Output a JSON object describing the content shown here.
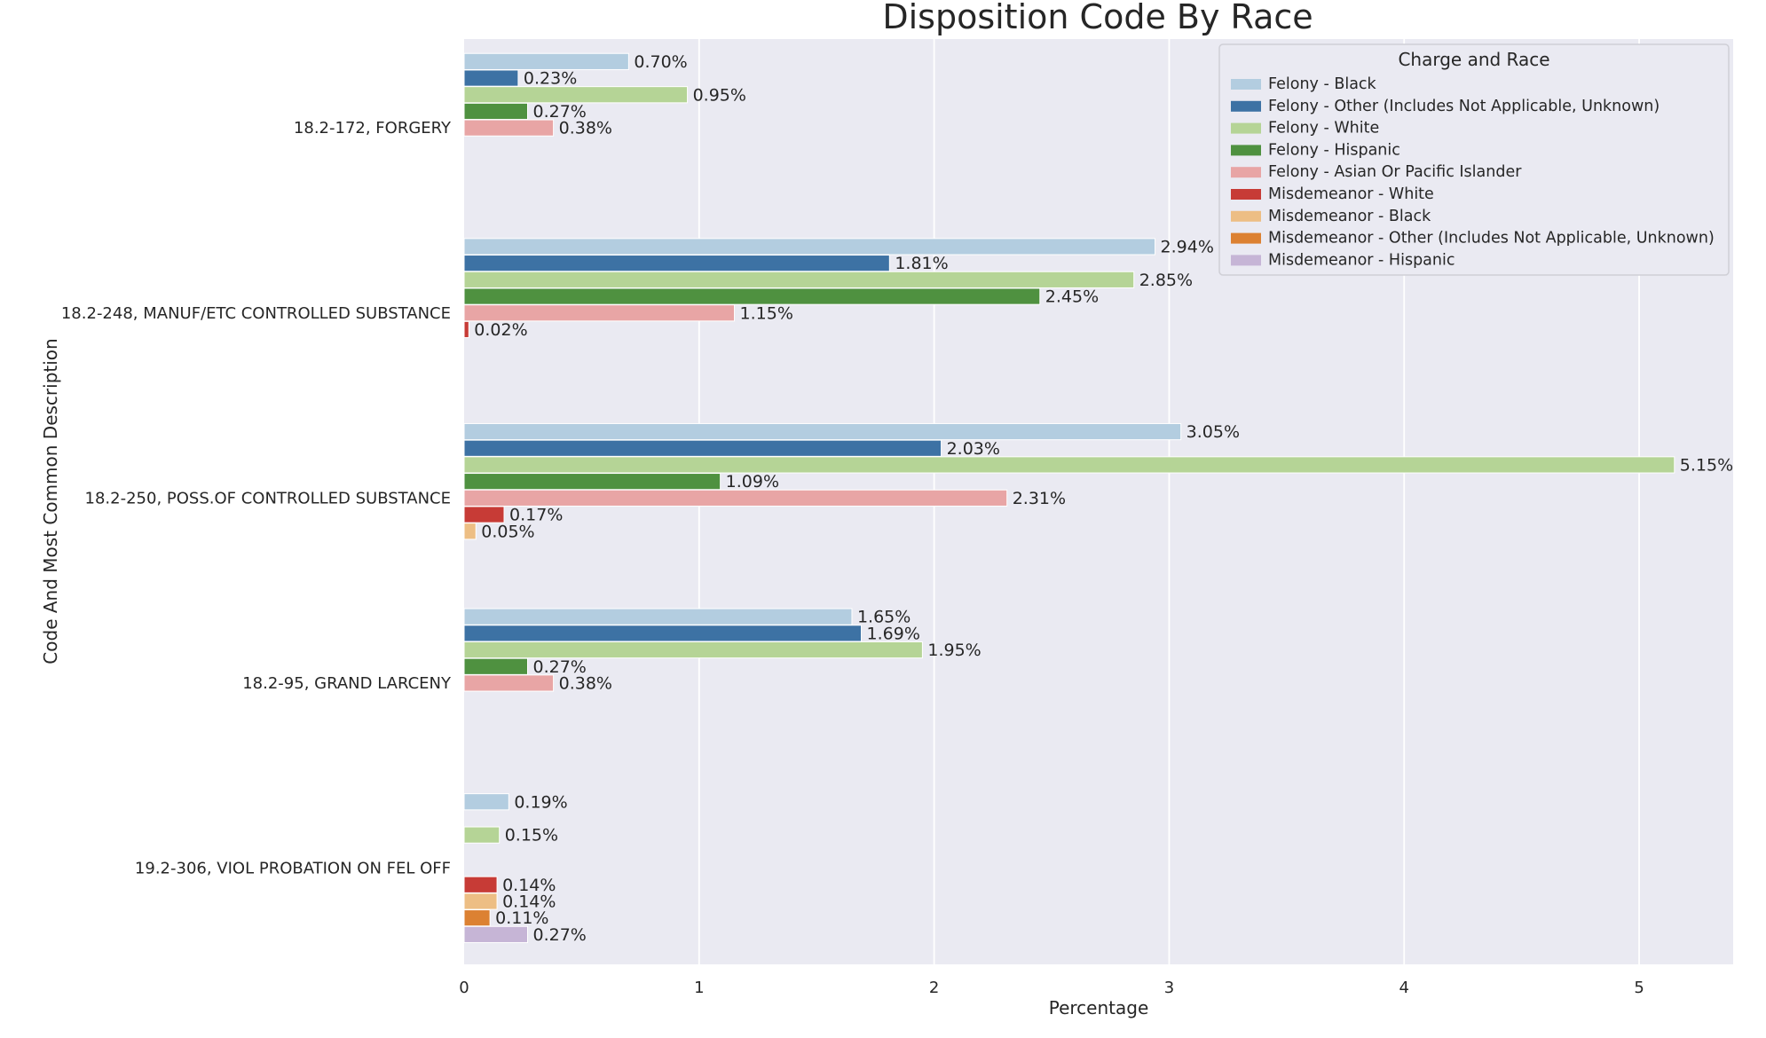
{
  "chart_data": {
    "type": "bar",
    "orientation": "horizontal",
    "title": "Disposition Code By Race",
    "xlabel": "Percentage",
    "ylabel": "Code And Most Common Description",
    "xlim": [
      0,
      5.4
    ],
    "xticks": [
      0,
      1,
      2,
      3,
      4,
      5
    ],
    "grid": true,
    "legend_title": "Charge and Race",
    "legend_position": "top-right",
    "value_suffix": "%",
    "categories": [
      "18.2-172, FORGERY",
      "18.2-248, MANUF/ETC CONTROLLED SUBSTANCE",
      "18.2-250, POSS.OF CONTROLLED SUBSTANCE",
      "18.2-95, GRAND LARCENY",
      "19.2-306, VIOL PROBATION ON FEL OFF"
    ],
    "series": [
      {
        "name": "Felony - Black",
        "color": "#b3cde0",
        "values": [
          0.7,
          2.94,
          3.05,
          1.65,
          0.19
        ]
      },
      {
        "name": "Felony - Other (Includes Not Applicable, Unknown)",
        "color": "#3d72a4",
        "values": [
          0.23,
          1.81,
          2.03,
          1.69,
          null
        ]
      },
      {
        "name": "Felony - White",
        "color": "#b5d496",
        "values": [
          0.95,
          2.85,
          5.15,
          1.95,
          0.15
        ]
      },
      {
        "name": "Felony - Hispanic",
        "color": "#4f9140",
        "values": [
          0.27,
          2.45,
          1.09,
          0.27,
          null
        ]
      },
      {
        "name": "Felony - Asian Or Pacific Islander",
        "color": "#e8a5a5",
        "values": [
          0.38,
          1.15,
          2.31,
          0.38,
          null
        ]
      },
      {
        "name": "Misdemeanor - White",
        "color": "#c73b36",
        "values": [
          null,
          0.02,
          0.17,
          null,
          0.14
        ]
      },
      {
        "name": "Misdemeanor - Black",
        "color": "#edbe84",
        "values": [
          null,
          null,
          0.05,
          null,
          0.14
        ]
      },
      {
        "name": "Misdemeanor - Other (Includes Not Applicable, Unknown)",
        "color": "#dc8132",
        "values": [
          null,
          null,
          null,
          null,
          0.11
        ]
      },
      {
        "name": "Misdemeanor - Hispanic",
        "color": "#c6b5d6",
        "values": [
          null,
          null,
          null,
          null,
          0.27
        ]
      }
    ]
  }
}
